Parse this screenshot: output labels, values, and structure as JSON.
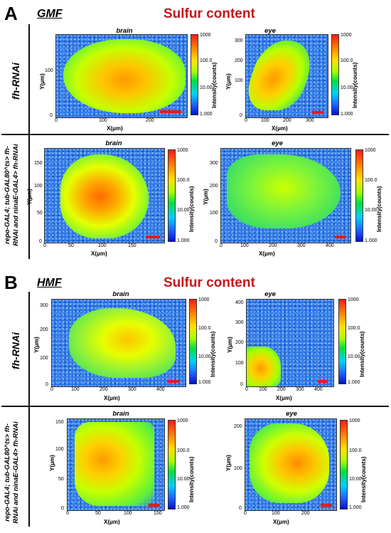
{
  "panelA": {
    "letter": "A",
    "condition": "GMF",
    "title": "Sulfur content"
  },
  "panelB": {
    "letter": "B",
    "condition": "HMF",
    "title": "Sulfur content"
  },
  "rows": {
    "fh": "fh-RNAi",
    "repo_line1": "repo-GAL4; tub-GAL80^ts> fh-",
    "repo_line2": "RNAi and ninaE-GAL4> fh-RNAi"
  },
  "images": {
    "brain": "brain",
    "eye": "eye"
  },
  "axes": {
    "x": "X(μm)",
    "y": "Y(μm)",
    "colorbar": "Intensity(counts)"
  },
  "colorbar_ticks": [
    "1000",
    "100.0",
    "10.00",
    "1.000"
  ],
  "colors": {
    "title": "#c4161c",
    "scale_bar": "#e61b1b"
  },
  "ticks": {
    "A1_brain_x": [
      "0",
      "100",
      "200"
    ],
    "A1_brain_y": [
      "0",
      "100"
    ],
    "A1_eye_x": [
      "0",
      "100",
      "200",
      "300"
    ],
    "A1_eye_y": [
      "0",
      "100",
      "200",
      "300"
    ],
    "A2_brain_x": [
      "0",
      "50",
      "100",
      "150"
    ],
    "A2_brain_y": [
      "0",
      "50",
      "100",
      "150"
    ],
    "A2_eye_x": [
      "0",
      "100",
      "200",
      "300",
      "400"
    ],
    "A2_eye_y": [
      "0",
      "100",
      "200",
      "300"
    ],
    "B1_brain_x": [
      "0",
      "100",
      "200",
      "300",
      "400"
    ],
    "B1_brain_y": [
      "0",
      "100",
      "200",
      "300"
    ],
    "B1_eye_x": [
      "0",
      "100",
      "200",
      "300",
      "400"
    ],
    "B1_eye_y": [
      "0",
      "100",
      "200",
      "300",
      "400"
    ],
    "B2_brain_x": [
      "0",
      "50",
      "100",
      "150"
    ],
    "B2_brain_y": [
      "0",
      "50",
      "100",
      "150"
    ],
    "B2_eye_x": [
      "0",
      "100",
      "200"
    ],
    "B2_eye_y": [
      "0",
      "100",
      "200"
    ]
  }
}
